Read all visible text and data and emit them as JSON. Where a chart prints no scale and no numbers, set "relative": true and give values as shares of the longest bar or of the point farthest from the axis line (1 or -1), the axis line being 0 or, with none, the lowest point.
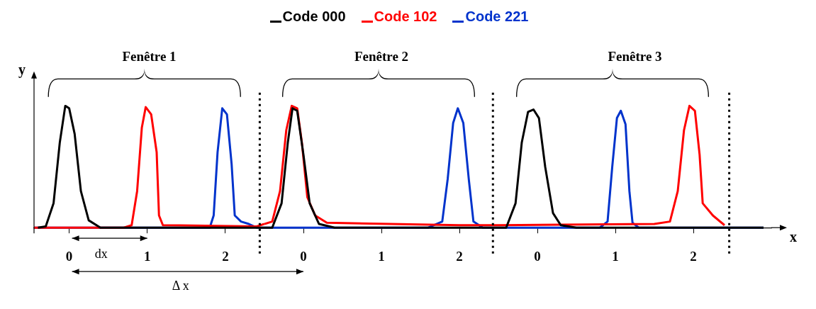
{
  "chart_data": [
    {
      "type": "line",
      "relative": true,
      "title": "Fenêtre 1",
      "ylabel": "y",
      "legend": "top",
      "marker": "none",
      "line_style": "solid",
      "grid": false,
      "xlim": [
        -0.45,
        2.5
      ],
      "xticks": [
        0,
        1,
        2
      ],
      "series": [
        {
          "name": "Code 000",
          "color": "#000000",
          "x": [
            -0.4,
            -0.3,
            -0.2,
            -0.12,
            -0.05,
            0,
            0.07,
            0.15,
            0.25,
            0.4,
            2.5
          ],
          "values": [
            0,
            0.01,
            0.2,
            0.7,
            1,
            0.98,
            0.77,
            0.3,
            0.06,
            0,
            0
          ]
        },
        {
          "name": "Code 102",
          "color": "#ff0000",
          "x": [
            -0.45,
            0.7,
            0.8,
            0.87,
            0.93,
            0.98,
            1.05,
            1.12,
            1.15,
            1.2,
            2.4,
            2.5
          ],
          "values": [
            0,
            0,
            0.02,
            0.3,
            0.82,
            0.99,
            0.93,
            0.62,
            0.1,
            0.02,
            0.01,
            0.03
          ]
        },
        {
          "name": "Code 221",
          "color": "#0033cc",
          "x": [
            -0.45,
            1.8,
            1.85,
            1.9,
            1.96,
            2.02,
            2.08,
            2.12,
            2.2,
            2.3,
            2.4,
            2.5
          ],
          "values": [
            0,
            0,
            0.1,
            0.62,
            0.98,
            0.93,
            0.52,
            0.1,
            0.05,
            0.03,
            0,
            0
          ]
        }
      ],
      "ref_lines": [
        {
          "axis": "x",
          "value": 2.44,
          "line_style": "dotted",
          "color": "#000000"
        }
      ],
      "annotations": [
        "dx",
        "Δ x"
      ]
    },
    {
      "type": "line",
      "relative": true,
      "title": "Fenêtre 2",
      "marker": "none",
      "line_style": "solid",
      "grid": false,
      "xlim": [
        -0.5,
        2.5
      ],
      "xticks": [
        0,
        1,
        2
      ],
      "series": [
        {
          "color": "#000000",
          "x": [
            -0.5,
            -0.4,
            -0.28,
            -0.2,
            -0.14,
            -0.08,
            0,
            0.08,
            0.2,
            0.4,
            2.5
          ],
          "values": [
            0,
            0,
            0.2,
            0.7,
            0.98,
            0.96,
            0.6,
            0.2,
            0.03,
            0,
            0
          ]
        },
        {
          "color": "#ff0000",
          "x": [
            -0.5,
            -0.4,
            -0.3,
            -0.22,
            -0.15,
            -0.08,
            -0.02,
            0.05,
            0.15,
            0.3,
            2.0,
            2.5
          ],
          "values": [
            0.03,
            0.05,
            0.3,
            0.8,
            1,
            0.98,
            0.7,
            0.25,
            0.1,
            0.04,
            0.02,
            0.02
          ]
        },
        {
          "color": "#0033cc",
          "x": [
            -0.5,
            1.6,
            1.78,
            1.85,
            1.92,
            1.98,
            2.05,
            2.12,
            2.18,
            2.3,
            2.5
          ],
          "values": [
            0,
            0,
            0.05,
            0.4,
            0.86,
            0.98,
            0.86,
            0.4,
            0.05,
            0,
            0
          ]
        }
      ],
      "ref_lines": [
        {
          "axis": "x",
          "value": 2.43,
          "line_style": "dotted",
          "color": "#000000"
        }
      ]
    },
    {
      "type": "line",
      "relative": true,
      "title": "Fenêtre 3",
      "xlabel": "x",
      "marker": "none",
      "line_style": "solid",
      "grid": false,
      "xlim": [
        -0.5,
        3.0
      ],
      "xticks": [
        0,
        1,
        2
      ],
      "series": [
        {
          "color": "#000000",
          "x": [
            -0.5,
            -0.4,
            -0.28,
            -0.2,
            -0.12,
            -0.05,
            0.02,
            0.1,
            0.2,
            0.3,
            0.5,
            2.9
          ],
          "values": [
            0,
            0,
            0.2,
            0.7,
            0.95,
            0.97,
            0.9,
            0.5,
            0.12,
            0.02,
            0,
            0
          ]
        },
        {
          "color": "#ff0000",
          "x": [
            -0.5,
            1.5,
            1.7,
            1.8,
            1.88,
            1.95,
            2.02,
            2.08,
            2.12,
            2.25,
            2.4
          ],
          "values": [
            0.02,
            0.03,
            0.05,
            0.3,
            0.8,
            1,
            0.96,
            0.6,
            0.2,
            0.1,
            0.02
          ]
        },
        {
          "color": "#0033cc",
          "x": [
            -0.5,
            0.8,
            0.9,
            0.96,
            1.02,
            1.07,
            1.13,
            1.18,
            1.22,
            1.3,
            2.9
          ],
          "values": [
            0,
            0,
            0.05,
            0.5,
            0.9,
            0.96,
            0.85,
            0.3,
            0.04,
            0,
            0
          ]
        }
      ],
      "ref_lines": [
        {
          "axis": "x",
          "value": 2.46,
          "line_style": "dotted",
          "color": "#000000"
        }
      ]
    }
  ]
}
